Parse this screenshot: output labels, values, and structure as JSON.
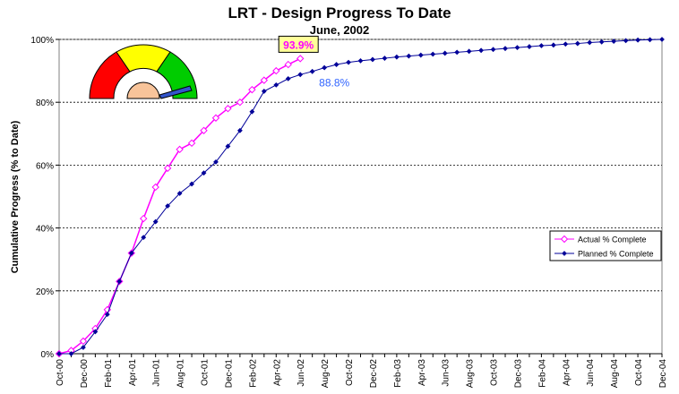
{
  "chart_data": {
    "type": "line",
    "title": "LRT - Design Progress To Date",
    "subtitle": "June, 2002",
    "y_label": "Cumulative Progress (% to Date)",
    "categories": [
      "Oct-00",
      null,
      "Dec-00",
      null,
      "Feb-01",
      null,
      "Apr-01",
      null,
      "Jun-01",
      null,
      "Aug-01",
      null,
      "Oct-01",
      null,
      "Dec-01",
      null,
      "Feb-02",
      null,
      "Apr-02",
      null,
      "Jun-02",
      null,
      "Aug-02",
      null,
      "Oct-02",
      null,
      "Dec-02",
      null,
      "Feb-03",
      null,
      "Apr-03",
      null,
      "Jun-03",
      null,
      "Aug-03",
      null,
      "Oct-03",
      null,
      "Dec-03",
      null,
      "Feb-04",
      null,
      "Apr-04",
      null,
      "Jun-04",
      null,
      "Aug-04",
      null,
      "Oct-04",
      null,
      "Dec-04"
    ],
    "series": [
      {
        "name": "Actual % Complete",
        "color": "#ff00ff",
        "values": [
          0,
          1,
          4,
          8,
          14,
          23,
          32,
          43,
          53,
          59,
          65,
          67,
          71,
          75,
          78,
          80,
          84,
          87,
          90,
          92,
          93.9,
          null,
          null,
          null,
          null,
          null,
          null,
          null,
          null,
          null,
          null,
          null,
          null,
          null,
          null,
          null,
          null,
          null,
          null,
          null,
          null,
          null,
          null,
          null,
          null,
          null,
          null,
          null,
          null,
          null,
          null
        ],
        "value_labels": [
          null,
          null,
          null,
          null,
          null,
          null,
          null,
          null,
          null,
          null,
          null,
          null,
          null,
          null,
          null,
          null,
          null,
          null,
          null,
          null,
          "93.9%",
          null,
          null,
          null,
          null,
          null,
          null,
          null,
          null,
          null,
          null,
          null,
          null,
          null,
          null,
          null,
          null,
          null,
          null,
          null,
          null,
          null,
          null,
          null,
          null,
          null,
          null,
          null,
          null,
          null,
          null
        ]
      },
      {
        "name": "Planned % Complete",
        "color": "#000099",
        "values": [
          0,
          0,
          2,
          7,
          12.5,
          23,
          32,
          37,
          42,
          47,
          51,
          54,
          57.5,
          61,
          66,
          71,
          77,
          83.5,
          85.5,
          87.5,
          88.8,
          89.8,
          91,
          92,
          92.7,
          93.2,
          93.6,
          94,
          94.4,
          94.7,
          95,
          95.3,
          95.6,
          95.9,
          96.2,
          96.5,
          96.8,
          97.1,
          97.4,
          97.7,
          98,
          98.2,
          98.5,
          98.7,
          99,
          99.2,
          99.4,
          99.6,
          99.8,
          99.9,
          100
        ],
        "value_labels": [
          null,
          null,
          null,
          null,
          null,
          null,
          null,
          null,
          null,
          null,
          null,
          null,
          null,
          null,
          null,
          null,
          null,
          null,
          null,
          null,
          "88.8%",
          null,
          null,
          null,
          null,
          null,
          null,
          null,
          null,
          null,
          null,
          null,
          null,
          null,
          null,
          null,
          null,
          null,
          null,
          null,
          null,
          null,
          null,
          null,
          null,
          null,
          null,
          null,
          null,
          null,
          null
        ]
      }
    ],
    "ylim": [
      0,
      100
    ],
    "yticks": [
      {
        "value": 0,
        "label": "0%"
      },
      {
        "value": 20,
        "label": "20%"
      },
      {
        "value": 40,
        "label": "40%"
      },
      {
        "value": 60,
        "label": "60%"
      },
      {
        "value": 80,
        "label": "80%"
      },
      {
        "value": 100,
        "label": "100%"
      }
    ],
    "grid": true,
    "legend": "right"
  }
}
